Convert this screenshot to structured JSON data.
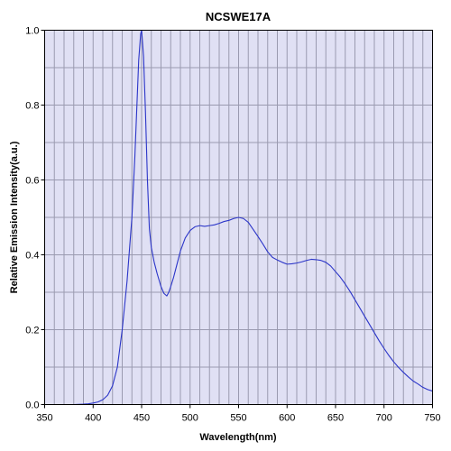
{
  "chart_data": {
    "type": "line",
    "title": "NCSWE17A",
    "xlabel": "Wavelength(nm)",
    "ylabel": "Relative Emission Intensity(a.u.)",
    "xlim": [
      350,
      750
    ],
    "ylim": [
      0,
      1.0
    ],
    "x_ticks": [
      350,
      400,
      450,
      500,
      550,
      600,
      650,
      700,
      750
    ],
    "x_tick_labels": [
      "350",
      "400",
      "450",
      "500",
      "550",
      "600",
      "650",
      "700",
      "750"
    ],
    "y_ticks": [
      0.0,
      0.2,
      0.4,
      0.6,
      0.8,
      1.0
    ],
    "y_tick_labels": [
      "0.0",
      "0.2",
      "0.4",
      "0.6",
      "0.8",
      "1.0"
    ],
    "x_minor_step": 10,
    "y_minor_step": 0.1,
    "grid": true,
    "plot_background": "#e0e0f4",
    "grid_color": "#9a9ab0",
    "series": [
      {
        "color": "#2b35c8",
        "x": [
          380,
          390,
          395,
          400,
          405,
          410,
          415,
          420,
          425,
          430,
          435,
          440,
          443,
          445,
          447,
          449,
          450,
          452,
          454,
          456,
          458,
          460,
          463,
          466,
          470,
          473,
          476,
          478,
          480,
          483,
          486,
          490,
          495,
          500,
          505,
          510,
          515,
          520,
          525,
          530,
          535,
          540,
          545,
          550,
          555,
          560,
          565,
          570,
          575,
          580,
          585,
          590,
          595,
          600,
          605,
          610,
          615,
          620,
          625,
          630,
          635,
          640,
          645,
          650,
          655,
          660,
          665,
          670,
          675,
          680,
          685,
          690,
          695,
          700,
          705,
          710,
          715,
          720,
          725,
          730,
          735,
          740,
          745,
          750
        ],
        "y": [
          0.0,
          0.001,
          0.002,
          0.004,
          0.007,
          0.013,
          0.025,
          0.05,
          0.1,
          0.2,
          0.33,
          0.5,
          0.66,
          0.79,
          0.92,
          0.99,
          1.0,
          0.93,
          0.78,
          0.6,
          0.47,
          0.42,
          0.38,
          0.35,
          0.315,
          0.297,
          0.29,
          0.3,
          0.315,
          0.34,
          0.37,
          0.41,
          0.445,
          0.465,
          0.475,
          0.478,
          0.476,
          0.478,
          0.48,
          0.484,
          0.489,
          0.492,
          0.497,
          0.5,
          0.497,
          0.487,
          0.468,
          0.449,
          0.429,
          0.408,
          0.393,
          0.386,
          0.38,
          0.375,
          0.376,
          0.378,
          0.381,
          0.385,
          0.388,
          0.387,
          0.385,
          0.38,
          0.37,
          0.355,
          0.34,
          0.322,
          0.302,
          0.28,
          0.258,
          0.236,
          0.214,
          0.192,
          0.17,
          0.15,
          0.131,
          0.114,
          0.099,
          0.086,
          0.074,
          0.063,
          0.055,
          0.046,
          0.04,
          0.036
        ]
      }
    ]
  }
}
